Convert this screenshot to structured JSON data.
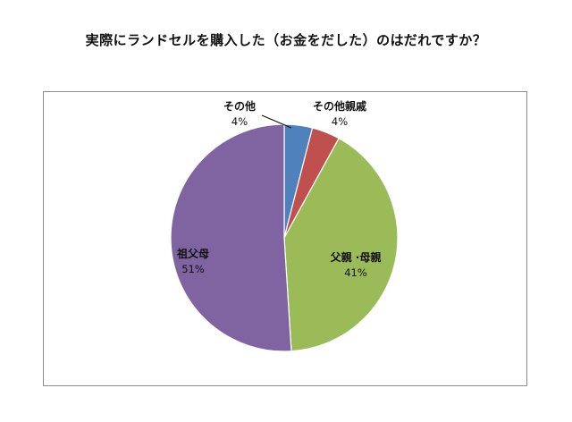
{
  "chart_data": {
    "type": "pie",
    "title": "実際にランドセルを購入した（お金をだした）のはだれですか？",
    "categories": [
      "その他",
      "その他親戚",
      "父親・母親",
      "祖父母"
    ],
    "values": [
      4,
      4,
      41,
      51
    ],
    "value_labels": [
      "4%",
      "4%",
      "41%",
      "51%"
    ],
    "slice_labels": [
      "その他",
      "その他親戚",
      "父親 ·母親",
      "祖父母"
    ],
    "colors": [
      "#4f81bd",
      "#c0504d",
      "#9bbb59",
      "#8064a2"
    ],
    "start_angle": "12 o'clock",
    "direction": "clockwise",
    "legend": "none",
    "grid": false
  }
}
